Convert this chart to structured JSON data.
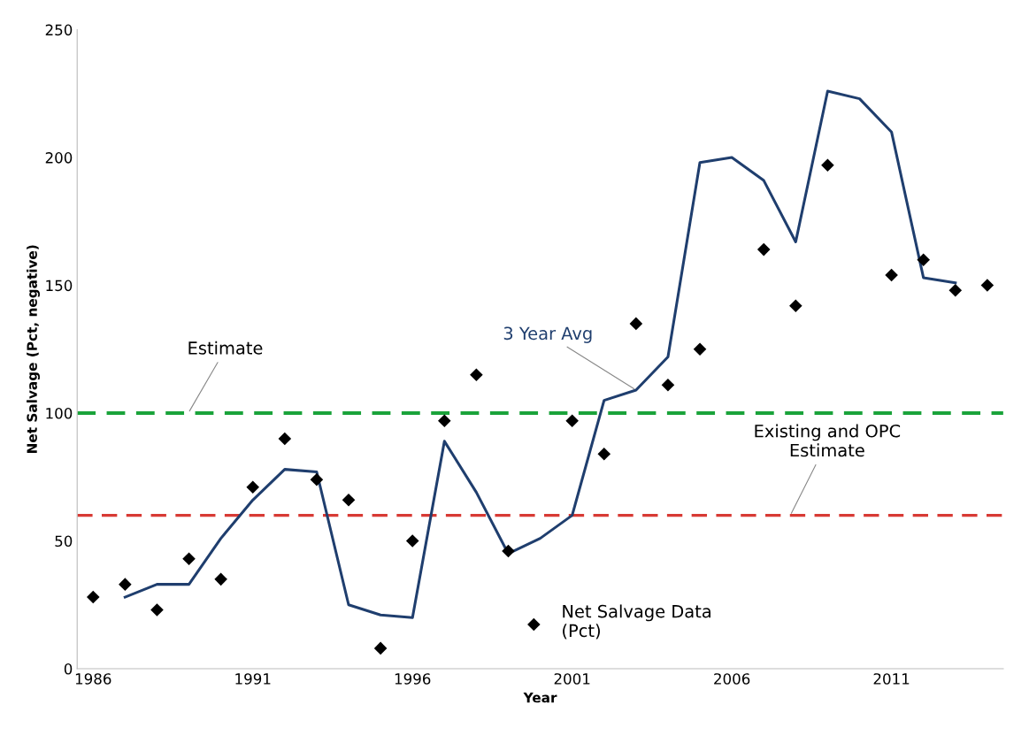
{
  "chart_data": {
    "type": "line",
    "xlabel": "Year",
    "ylabel": "Net Salvage (Pct, negative)",
    "x": [
      1986,
      1987,
      1988,
      1989,
      1990,
      1991,
      1992,
      1993,
      1994,
      1995,
      1996,
      1997,
      1998,
      1999,
      2001,
      2002,
      2003,
      2004,
      2005,
      2007,
      2008,
      2009,
      2011,
      2012,
      2013,
      2014
    ],
    "series": [
      {
        "name": "Net Salvage Data\n(Pct)",
        "type": "scatter",
        "color": "#000000",
        "marker": "diamond",
        "values": [
          28,
          33,
          23,
          43,
          35,
          71,
          90,
          74,
          66,
          8,
          50,
          97,
          115,
          46,
          97,
          84,
          135,
          111,
          125,
          164,
          142,
          197,
          154,
          160,
          148,
          150
        ]
      },
      {
        "name": "3 Year Avg",
        "color": "#1f3e6e",
        "marker": "none",
        "line_style": "solid",
        "x": [
          1987,
          1988,
          1989,
          1990,
          1991,
          1992,
          1993,
          1994,
          1995,
          1996,
          1997,
          1998,
          1999,
          2000,
          2001,
          2002,
          2003,
          2004,
          2005,
          2006,
          2007,
          2008,
          2009,
          2010,
          2011,
          2012,
          2013
        ],
        "values": [
          28,
          33,
          33,
          51,
          66,
          78,
          77,
          25,
          21,
          20,
          89,
          69,
          45,
          51,
          60,
          105,
          109,
          122,
          198,
          200,
          191,
          167,
          226,
          223,
          210,
          153,
          151
        ]
      }
    ],
    "xlim": [
      1985.5,
      2014.5
    ],
    "xticks": [
      1986,
      1991,
      1996,
      2001,
      2006,
      2011
    ],
    "ylim": [
      0,
      250
    ],
    "yticks": [
      0,
      50,
      100,
      150,
      200,
      250
    ],
    "ref_lines": [
      {
        "axis": "y",
        "value": 100,
        "label": "Estimate",
        "color": "#1aa33a",
        "line_style": "dashed"
      },
      {
        "axis": "y",
        "value": 60,
        "label": "Existing and OPC\nEstimate",
        "color": "#d83a34",
        "line_style": "dashed"
      }
    ],
    "grid": false,
    "legend": "bottom"
  }
}
